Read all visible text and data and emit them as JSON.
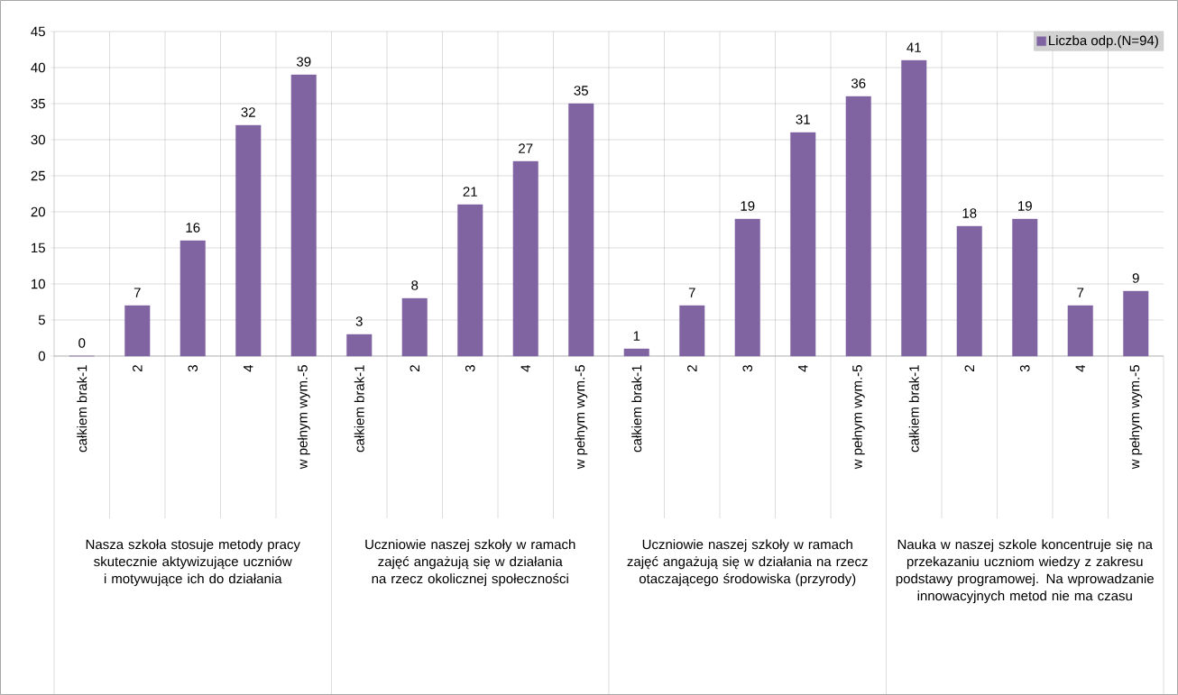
{
  "chart_data": {
    "type": "bar",
    "categories": [
      "całkiem brak-1",
      "2",
      "3",
      "4",
      "w pełnym wym.-5",
      "całkiem brak-1",
      "2",
      "3",
      "4",
      "w pełnym wym.-5",
      "całkiem brak-1",
      "2",
      "3",
      "4",
      "w pełnym wym.-5",
      "całkiem brak-1",
      "2",
      "3",
      "4",
      "w pełnym wym.-5"
    ],
    "series": [
      {
        "name": "Liczba odp.(N=94)",
        "color": "#8064a2",
        "values": [
          0,
          7,
          16,
          32,
          39,
          3,
          8,
          21,
          27,
          35,
          1,
          7,
          19,
          31,
          36,
          41,
          18,
          19,
          7,
          9
        ]
      }
    ],
    "annotations": [
      "Nasza szkoła stosuje metody pracy skutecznie aktywizujące uczniów i motywujące ich do działania",
      "Uczniowie naszej szkoły w ramach zajęć angażują się w działania na rzecz okolicznej społeczności",
      "Uczniowie naszej szkoły w ramach zajęć angażują się w działania na rzecz otaczającego środowiska (przyrody)",
      "Nauka w naszej szkole koncentruje się na przekazaniu uczniom wiedzy z zakresu podstawy programowej. Na wprowadzanie innowacyjnych metod nie ma czasu"
    ],
    "ylim": [
      0,
      45
    ],
    "yticks": [
      0,
      5,
      10,
      15,
      20,
      25,
      30,
      35,
      40,
      45
    ],
    "grid": true,
    "legend": "top right",
    "data_labels": true
  }
}
